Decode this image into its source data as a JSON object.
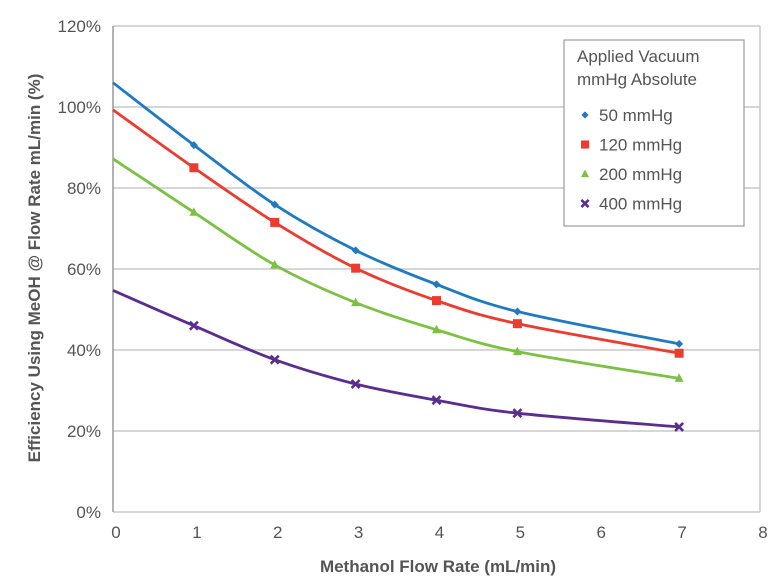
{
  "chart_data": {
    "type": "scatter",
    "title": "",
    "xlabel": "Methanol Flow Rate (mL/min)",
    "ylabel": "Efficiency Using MeOH @ Flow Rate mL/min (%)",
    "xlim": [
      0,
      8
    ],
    "ylim": [
      0,
      120
    ],
    "x_ticks": [
      "0",
      "1",
      "2",
      "3",
      "4",
      "5",
      "6",
      "7",
      "8"
    ],
    "y_ticks": [
      "0%",
      "20%",
      "40%",
      "60%",
      "80%",
      "100%",
      "120%"
    ],
    "grid": "horizontal",
    "trendlines": true,
    "legend": {
      "title_line1": "Applied Vacuum",
      "title_line2": "mmHg Absolute",
      "placement": "top-right"
    },
    "x": [
      1,
      2,
      3,
      4,
      5,
      7
    ],
    "series": [
      {
        "name": "50 mmHg",
        "marker": "diamond",
        "color": "#1f7bc1",
        "values": [
          90.6,
          75.9,
          64.6,
          56.2,
          49.5,
          41.5
        ],
        "trend_at_0": 106
      },
      {
        "name": "120 mmHg",
        "marker": "square",
        "color": "#ee3b2f",
        "values": [
          85,
          71.5,
          60.2,
          52.2,
          46.5,
          39.2
        ],
        "trend_at_0": 99.3
      },
      {
        "name": "200 mmHg",
        "marker": "triangle",
        "color": "#7cc242",
        "values": [
          74,
          61,
          51.7,
          45,
          39.6,
          33
        ],
        "trend_at_0": 87.2
      },
      {
        "name": "400 mmHg",
        "marker": "x",
        "color": "#5b2d8e",
        "values": [
          46,
          37.6,
          31.6,
          27.6,
          24.4,
          21
        ],
        "trend_at_0": 54.7
      }
    ]
  }
}
